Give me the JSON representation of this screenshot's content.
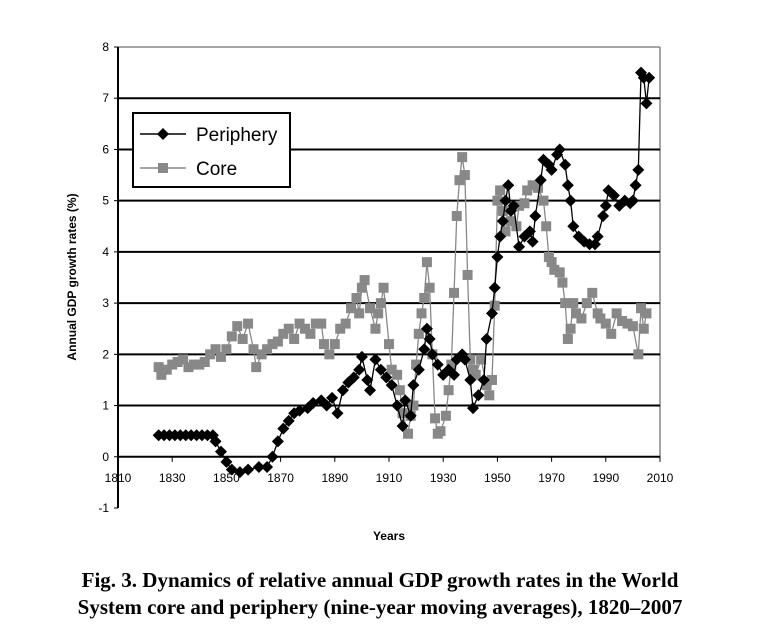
{
  "chart_data": {
    "type": "line",
    "xlabel": "Years",
    "ylabel": "Annual GDP growth rates (%)",
    "xlim": [
      1810,
      2010
    ],
    "ylim": [
      -1,
      8
    ],
    "xticks": [
      "1810",
      "1830",
      "1850",
      "1870",
      "1890",
      "1910",
      "1930",
      "1950",
      "1970",
      "1990",
      "2010"
    ],
    "yticks": [
      "-1",
      "0",
      "1",
      "2",
      "3",
      "4",
      "5",
      "6",
      "7",
      "8"
    ],
    "grid": "horizontal",
    "legend_position": "top-left",
    "series": [
      {
        "name": "Periphery",
        "color": "#000000",
        "marker": "diamond",
        "x": [
          1825,
          1827,
          1829,
          1831,
          1833,
          1835,
          1837,
          1839,
          1841,
          1843,
          1845,
          1846,
          1848,
          1850,
          1852,
          1855,
          1858,
          1862,
          1865,
          1867,
          1869,
          1871,
          1873,
          1875,
          1877,
          1880,
          1882,
          1885,
          1887,
          1889,
          1891,
          1893,
          1895,
          1897,
          1899,
          1900,
          1902,
          1903,
          1905,
          1907,
          1909,
          1911,
          1913,
          1915,
          1916,
          1918,
          1919,
          1921,
          1923,
          1924,
          1925,
          1926,
          1928,
          1930,
          1932,
          1934,
          1935,
          1937,
          1938,
          1940,
          1941,
          1943,
          1945,
          1946,
          1948,
          1949,
          1950,
          1951,
          1952,
          1953,
          1954,
          1955,
          1956,
          1958,
          1960,
          1962,
          1963,
          1964,
          1966,
          1967,
          1969,
          1970,
          1972,
          1973,
          1975,
          1976,
          1977,
          1978,
          1980,
          1982,
          1984,
          1986,
          1987,
          1989,
          1990,
          1991,
          1993,
          1995,
          1997,
          1999,
          2000,
          2001,
          2002,
          2003,
          2004,
          2005,
          2006
        ],
        "y": [
          0.42,
          0.42,
          0.42,
          0.42,
          0.42,
          0.42,
          0.42,
          0.42,
          0.42,
          0.42,
          0.42,
          0.3,
          0.1,
          -0.1,
          -0.25,
          -0.3,
          -0.25,
          -0.2,
          -0.2,
          0.0,
          0.3,
          0.55,
          0.7,
          0.85,
          0.9,
          0.95,
          1.05,
          1.1,
          1.0,
          1.15,
          0.85,
          1.3,
          1.45,
          1.55,
          1.7,
          1.95,
          1.5,
          1.3,
          1.9,
          1.7,
          1.55,
          1.4,
          1.0,
          0.6,
          1.1,
          0.8,
          1.4,
          1.7,
          2.1,
          2.5,
          2.3,
          2.0,
          1.8,
          1.6,
          1.7,
          1.6,
          1.9,
          2.0,
          1.9,
          1.5,
          0.95,
          1.2,
          1.5,
          2.3,
          2.8,
          3.3,
          3.9,
          4.3,
          4.6,
          5.0,
          5.3,
          4.8,
          4.9,
          4.1,
          4.3,
          4.4,
          4.2,
          4.7,
          5.4,
          5.8,
          5.7,
          5.6,
          5.9,
          6.0,
          5.7,
          5.3,
          5.0,
          4.5,
          4.3,
          4.2,
          4.15,
          4.15,
          4.3,
          4.7,
          4.9,
          5.2,
          5.1,
          4.9,
          5.0,
          4.95,
          5.0,
          5.3,
          5.6,
          7.5,
          7.4,
          6.9,
          7.4
        ]
      },
      {
        "name": "Core",
        "color": "#888888",
        "marker": "square",
        "x": [
          1825,
          1826,
          1828,
          1830,
          1832,
          1834,
          1836,
          1838,
          1840,
          1842,
          1844,
          1846,
          1848,
          1850,
          1852,
          1854,
          1856,
          1858,
          1860,
          1861,
          1863,
          1865,
          1867,
          1869,
          1871,
          1873,
          1875,
          1877,
          1879,
          1881,
          1883,
          1885,
          1886,
          1888,
          1890,
          1892,
          1894,
          1896,
          1898,
          1899,
          1900,
          1901,
          1903,
          1905,
          1906,
          1907,
          1908,
          1910,
          1911,
          1913,
          1914,
          1915,
          1917,
          1918,
          1919,
          1920,
          1921,
          1922,
          1923,
          1924,
          1925,
          1926,
          1927,
          1928,
          1929,
          1931,
          1932,
          1933,
          1934,
          1935,
          1936,
          1937,
          1938,
          1939,
          1940,
          1941,
          1942,
          1944,
          1946,
          1947,
          1948,
          1949,
          1950,
          1951,
          1952,
          1953,
          1955,
          1957,
          1958,
          1960,
          1961,
          1963,
          1965,
          1967,
          1968,
          1969,
          1970,
          1971,
          1973,
          1974,
          1975,
          1976,
          1977,
          1978,
          1979,
          1981,
          1983,
          1985,
          1987,
          1988,
          1990,
          1992,
          1994,
          1996,
          1998,
          2000,
          2002,
          2003,
          2004,
          2005
        ],
        "y": [
          1.75,
          1.6,
          1.7,
          1.8,
          1.85,
          1.9,
          1.75,
          1.8,
          1.8,
          1.85,
          2.0,
          2.1,
          1.95,
          2.1,
          2.35,
          2.55,
          2.3,
          2.6,
          2.1,
          1.75,
          2.0,
          2.1,
          2.2,
          2.25,
          2.4,
          2.5,
          2.3,
          2.6,
          2.5,
          2.4,
          2.6,
          2.6,
          2.2,
          2.0,
          2.2,
          2.5,
          2.6,
          2.9,
          3.1,
          2.8,
          3.3,
          3.45,
          2.9,
          2.5,
          2.8,
          3.0,
          3.3,
          2.2,
          1.7,
          1.6,
          1.3,
          0.85,
          0.45,
          0.8,
          1.0,
          1.8,
          2.4,
          2.8,
          3.1,
          3.8,
          3.3,
          2.0,
          0.75,
          0.45,
          0.5,
          0.8,
          1.3,
          1.8,
          3.2,
          4.7,
          5.4,
          5.85,
          5.5,
          3.55,
          1.9,
          1.7,
          1.6,
          1.9,
          1.4,
          1.2,
          1.5,
          2.95,
          5.0,
          5.2,
          4.8,
          4.4,
          4.6,
          4.5,
          4.9,
          4.95,
          5.2,
          5.3,
          5.25,
          5.0,
          4.5,
          3.9,
          3.8,
          3.65,
          3.6,
          3.4,
          3.0,
          2.3,
          2.5,
          3.0,
          2.8,
          2.7,
          3.0,
          3.2,
          2.8,
          2.7,
          2.6,
          2.4,
          2.8,
          2.65,
          2.6,
          2.55,
          2.0,
          2.9,
          2.5,
          2.8
        ]
      }
    ]
  },
  "caption": {
    "line1": "Fig. 3. Dynamics of relative annual GDP growth rates in the World",
    "line2": "System core and periphery (nine-year moving averages), 1820–2007"
  }
}
